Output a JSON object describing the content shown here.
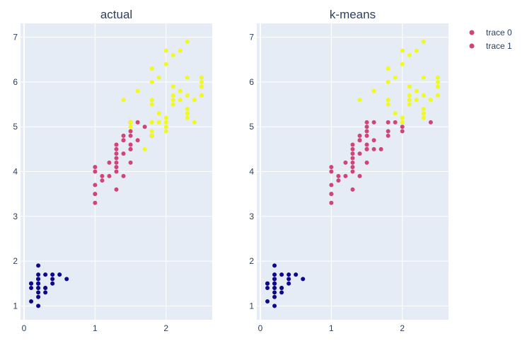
{
  "chart_data": [
    {
      "type": "scatter",
      "title": "actual",
      "xlim": [
        -0.05,
        2.65
      ],
      "ylim": [
        0.69,
        7.31
      ],
      "xticks": [
        0,
        1,
        2
      ],
      "yticks": [
        1,
        2,
        3,
        4,
        5,
        6,
        7
      ],
      "grid": true,
      "series": [
        {
          "color": "#0d0887",
          "points": [
            [
              0.2,
              1.4
            ],
            [
              0.2,
              1.3
            ],
            [
              0.2,
              1.5
            ],
            [
              0.4,
              1.7
            ],
            [
              0.3,
              1.4
            ],
            [
              0.2,
              1.5
            ],
            [
              0.1,
              1.5
            ],
            [
              0.1,
              1.1
            ],
            [
              0.2,
              1.2
            ],
            [
              0.4,
              1.5
            ],
            [
              0.3,
              1.3
            ],
            [
              0.3,
              1.7
            ],
            [
              0.2,
              1.7
            ],
            [
              0.2,
              1.9
            ],
            [
              0.5,
              1.7
            ],
            [
              0.2,
              1.6
            ],
            [
              0.2,
              1.0
            ],
            [
              0.1,
              1.4
            ],
            [
              0.6,
              1.6
            ],
            [
              0.3,
              1.4
            ],
            [
              0.4,
              1.6
            ],
            [
              0.1,
              1.5
            ],
            [
              0.2,
              1.6
            ],
            [
              0.2,
              1.4
            ]
          ]
        },
        {
          "color": "#cc4778",
          "points": [
            [
              1.4,
              4.7
            ],
            [
              1.5,
              4.5
            ],
            [
              1.5,
              4.9
            ],
            [
              1.3,
              4.0
            ],
            [
              1.5,
              4.6
            ],
            [
              1.3,
              4.5
            ],
            [
              1.6,
              4.7
            ],
            [
              1.0,
              3.3
            ],
            [
              1.3,
              4.6
            ],
            [
              1.4,
              3.9
            ],
            [
              1.0,
              3.5
            ],
            [
              1.5,
              4.2
            ],
            [
              1.0,
              4.0
            ],
            [
              1.4,
              4.7
            ],
            [
              1.3,
              3.6
            ],
            [
              1.4,
              4.4
            ],
            [
              1.0,
              4.1
            ],
            [
              1.5,
              4.8
            ],
            [
              1.1,
              3.9
            ],
            [
              1.8,
              4.8
            ],
            [
              1.3,
              4.3
            ],
            [
              1.2,
              3.9
            ],
            [
              1.4,
              4.8
            ],
            [
              1.7,
              5.0
            ],
            [
              1.3,
              4.4
            ],
            [
              1.2,
              4.2
            ],
            [
              1.0,
              3.7
            ],
            [
              1.6,
              5.1
            ],
            [
              1.5,
              4.5
            ],
            [
              1.3,
              4.1
            ],
            [
              1.1,
              3.8
            ],
            [
              1.0,
              3.5
            ],
            [
              1.3,
              4.2
            ],
            [
              1.5,
              5.1
            ]
          ]
        },
        {
          "color": "#f0f921",
          "points": [
            [
              2.5,
              6.0
            ],
            [
              1.9,
              5.1
            ],
            [
              2.1,
              5.9
            ],
            [
              1.8,
              5.6
            ],
            [
              2.2,
              5.8
            ],
            [
              2.1,
              6.6
            ],
            [
              1.7,
              4.5
            ],
            [
              1.8,
              6.3
            ],
            [
              2.5,
              6.1
            ],
            [
              2.0,
              5.1
            ],
            [
              1.9,
              5.3
            ],
            [
              2.1,
              5.5
            ],
            [
              2.0,
              5.0
            ],
            [
              2.4,
              5.1
            ],
            [
              2.3,
              5.3
            ],
            [
              1.8,
              5.5
            ],
            [
              2.2,
              6.7
            ],
            [
              2.3,
              6.9
            ],
            [
              1.5,
              5.0
            ],
            [
              2.3,
              5.7
            ],
            [
              2.0,
              4.9
            ],
            [
              2.0,
              6.7
            ],
            [
              1.8,
              4.9
            ],
            [
              2.1,
              5.7
            ],
            [
              1.8,
              6.0
            ],
            [
              1.8,
              4.8
            ],
            [
              2.1,
              5.6
            ],
            [
              1.6,
              5.8
            ],
            [
              1.9,
              6.1
            ],
            [
              2.0,
              6.4
            ],
            [
              2.2,
              5.6
            ],
            [
              1.5,
              5.1
            ],
            [
              1.4,
              5.6
            ],
            [
              2.3,
              6.1
            ],
            [
              2.4,
              5.6
            ],
            [
              2.3,
              5.4
            ],
            [
              1.9,
              5.1
            ],
            [
              2.5,
              5.7
            ],
            [
              2.3,
              5.2
            ],
            [
              2.0,
              5.2
            ],
            [
              1.5,
              5.0
            ],
            [
              2.4,
              5.6
            ],
            [
              1.8,
              5.1
            ],
            [
              2.5,
              5.9
            ]
          ]
        }
      ]
    },
    {
      "type": "scatter",
      "title": "k-means",
      "xlim": [
        -0.05,
        2.65
      ],
      "ylim": [
        0.69,
        7.31
      ],
      "xticks": [
        0,
        1,
        2
      ],
      "yticks": [
        1,
        2,
        3,
        4,
        5,
        6,
        7
      ],
      "grid": true,
      "series": [
        {
          "color": "#0d0887",
          "points": [
            [
              0.2,
              1.4
            ],
            [
              0.2,
              1.3
            ],
            [
              0.2,
              1.5
            ],
            [
              0.4,
              1.7
            ],
            [
              0.3,
              1.4
            ],
            [
              0.2,
              1.5
            ],
            [
              0.1,
              1.5
            ],
            [
              0.1,
              1.1
            ],
            [
              0.2,
              1.2
            ],
            [
              0.4,
              1.5
            ],
            [
              0.3,
              1.3
            ],
            [
              0.3,
              1.7
            ],
            [
              0.2,
              1.7
            ],
            [
              0.2,
              1.9
            ],
            [
              0.5,
              1.7
            ],
            [
              0.2,
              1.6
            ],
            [
              0.2,
              1.0
            ],
            [
              0.1,
              1.4
            ],
            [
              0.6,
              1.6
            ],
            [
              0.3,
              1.4
            ],
            [
              0.4,
              1.6
            ],
            [
              0.1,
              1.5
            ],
            [
              0.2,
              1.6
            ],
            [
              0.2,
              1.4
            ]
          ]
        },
        {
          "color": "#cc4778",
          "points": [
            [
              1.4,
              4.7
            ],
            [
              1.5,
              4.5
            ],
            [
              1.5,
              4.9
            ],
            [
              1.3,
              4.0
            ],
            [
              1.5,
              4.6
            ],
            [
              1.3,
              4.5
            ],
            [
              1.6,
              4.7
            ],
            [
              1.0,
              3.3
            ],
            [
              1.3,
              4.6
            ],
            [
              1.4,
              3.9
            ],
            [
              1.0,
              3.5
            ],
            [
              1.5,
              4.2
            ],
            [
              1.0,
              4.0
            ],
            [
              1.4,
              4.7
            ],
            [
              1.3,
              3.6
            ],
            [
              1.4,
              4.4
            ],
            [
              1.0,
              4.1
            ],
            [
              1.5,
              4.8
            ],
            [
              1.1,
              3.9
            ],
            [
              1.8,
              4.8
            ],
            [
              1.3,
              4.3
            ],
            [
              1.2,
              3.9
            ],
            [
              1.4,
              4.8
            ],
            [
              1.7,
              4.5
            ],
            [
              1.3,
              4.4
            ],
            [
              1.2,
              4.2
            ],
            [
              1.0,
              3.7
            ],
            [
              1.6,
              5.1
            ],
            [
              1.5,
              4.5
            ],
            [
              1.3,
              4.1
            ],
            [
              1.1,
              3.8
            ],
            [
              1.0,
              3.5
            ],
            [
              1.3,
              4.2
            ],
            [
              1.5,
              5.1
            ],
            [
              1.8,
              4.9
            ],
            [
              1.9,
              5.1
            ],
            [
              2.0,
              5.0
            ],
            [
              1.5,
              5.0
            ],
            [
              2.0,
              4.9
            ],
            [
              1.8,
              5.1
            ],
            [
              2.4,
              5.1
            ],
            [
              1.6,
              4.5
            ]
          ]
        },
        {
          "color": "#f0f921",
          "points": [
            [
              2.5,
              6.0
            ],
            [
              2.1,
              5.9
            ],
            [
              1.8,
              5.6
            ],
            [
              2.2,
              5.8
            ],
            [
              2.1,
              6.6
            ],
            [
              1.8,
              6.3
            ],
            [
              2.5,
              6.1
            ],
            [
              1.9,
              5.3
            ],
            [
              2.1,
              5.5
            ],
            [
              2.3,
              5.3
            ],
            [
              1.8,
              5.5
            ],
            [
              2.2,
              6.7
            ],
            [
              2.3,
              6.9
            ],
            [
              2.3,
              5.7
            ],
            [
              2.0,
              6.7
            ],
            [
              2.1,
              5.7
            ],
            [
              1.8,
              6.0
            ],
            [
              2.1,
              5.6
            ],
            [
              1.6,
              5.8
            ],
            [
              1.9,
              6.1
            ],
            [
              2.0,
              6.4
            ],
            [
              2.2,
              5.6
            ],
            [
              1.4,
              5.6
            ],
            [
              2.3,
              6.1
            ],
            [
              2.4,
              5.6
            ],
            [
              2.3,
              5.4
            ],
            [
              2.5,
              5.7
            ],
            [
              2.3,
              5.2
            ],
            [
              2.0,
              5.2
            ],
            [
              2.4,
              5.6
            ],
            [
              2.5,
              5.9
            ],
            [
              2.0,
              5.1
            ]
          ]
        }
      ]
    }
  ],
  "legend": {
    "placement": "top-right",
    "items": [
      {
        "label": "trace 0",
        "color": "#cc4778"
      },
      {
        "label": "trace 1",
        "color": "#cc4778"
      }
    ]
  }
}
